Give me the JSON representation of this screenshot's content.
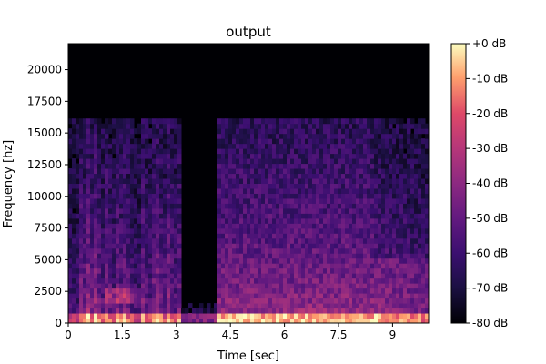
{
  "chart_data": {
    "type": "heatmap",
    "title": "output",
    "xlabel": "Time [sec]",
    "ylabel": "Frequency [hz]",
    "xlim": [
      0,
      10.0
    ],
    "ylim": [
      0,
      22050
    ],
    "x_ticks": [
      0,
      1.5,
      3,
      4.5,
      6,
      7.5,
      9
    ],
    "x_tick_labels": [
      "0",
      "1.5",
      "3",
      "4.5",
      "6",
      "7.5",
      "9"
    ],
    "y_ticks": [
      0,
      2500,
      5000,
      7500,
      10000,
      12500,
      15000,
      17500,
      20000
    ],
    "y_tick_labels": [
      "0",
      "2500",
      "5000",
      "7500",
      "10000",
      "12500",
      "15000",
      "17500",
      "20000"
    ],
    "colorbar": {
      "colormap": "magma",
      "range_db": [
        -80,
        0
      ],
      "ticks": [
        0,
        -10,
        -20,
        -30,
        -40,
        -50,
        -60,
        -70,
        -80
      ],
      "tick_labels": [
        "+0 dB",
        "-10 dB",
        "-20 dB",
        "-30 dB",
        "-40 dB",
        "-50 dB",
        "-60 dB",
        "-70 dB",
        "-80 dB"
      ]
    },
    "grid": false,
    "legend": "none",
    "segments": [
      {
        "t_start": 0.0,
        "t_end": 4.1,
        "max_freq_hz": 16000,
        "description": "sparse transient onsets with decaying energy; harmonic band near 2000 hz around t=1.0–2.0"
      },
      {
        "t_start": 4.1,
        "t_end": 8.5,
        "max_freq_hz": 16000,
        "description": "dense broadband energy, strongest below 5000 hz"
      },
      {
        "t_start": 8.5,
        "t_end": 10.0,
        "max_freq_hz": 16000,
        "description": "decaying energy with striated harmonics below 5000 hz"
      }
    ],
    "gaps": [
      {
        "t_start": 3.1,
        "t_end": 4.1,
        "max_freq_hz": 1500,
        "description": "quiet region, only low-frequency energy"
      }
    ]
  }
}
